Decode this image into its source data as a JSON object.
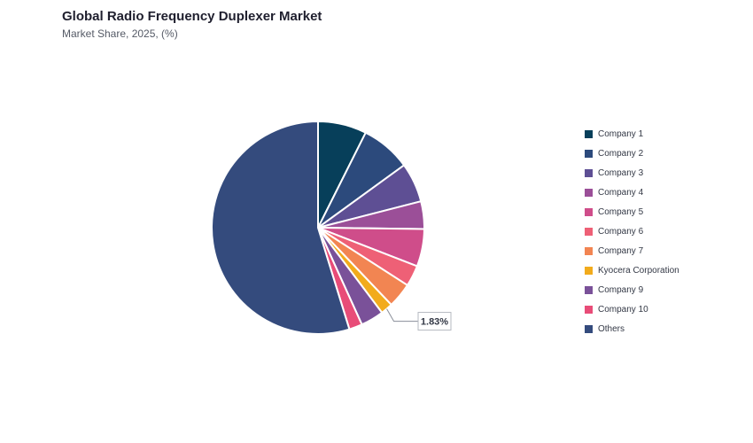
{
  "header": {
    "title": "Global Radio Frequency Duplexer Market",
    "subtitle": "Market Share, 2025, (%)"
  },
  "chart_data": {
    "type": "pie",
    "title": "Global Radio Frequency Duplexer Market",
    "subtitle": "Market Share, 2025, (%)",
    "legend_position": "right",
    "slices": [
      {
        "label": "Company 1",
        "value": 7.4,
        "color": "#073f5a"
      },
      {
        "label": "Company 2",
        "value": 7.6,
        "color": "#2c4a7c"
      },
      {
        "label": "Company 3",
        "value": 6.0,
        "color": "#5e4f94"
      },
      {
        "label": "Company 4",
        "value": 4.2,
        "color": "#9b4f98"
      },
      {
        "label": "Company 5",
        "value": 5.7,
        "color": "#cf4d8a"
      },
      {
        "label": "Company 6",
        "value": 3.2,
        "color": "#ee6076"
      },
      {
        "label": "Company 7",
        "value": 3.8,
        "color": "#f28552"
      },
      {
        "label": "Kyocera Corporation",
        "value": 1.83,
        "color": "#f2ab1c"
      },
      {
        "label": "Company 9",
        "value": 3.5,
        "color": "#7a5199"
      },
      {
        "label": "Company 10",
        "value": 2.0,
        "color": "#e84c78"
      },
      {
        "label": "Others",
        "value": 54.77,
        "color": "#344b7d"
      }
    ],
    "data_labels": [
      {
        "slice": "Kyocera Corporation",
        "text": "1.83%"
      }
    ]
  }
}
